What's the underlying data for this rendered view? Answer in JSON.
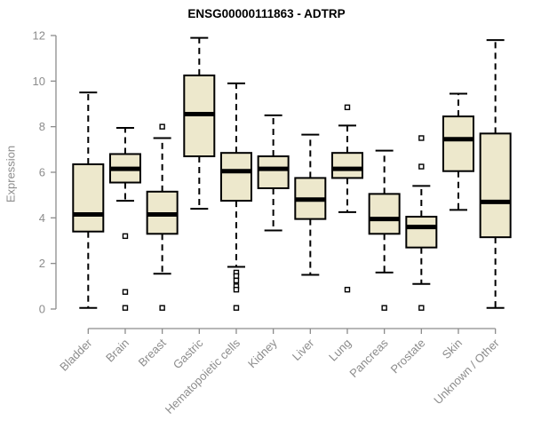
{
  "title": "ENSG00000111863 - ADTRP",
  "chart_data": {
    "type": "boxplot",
    "title": "ENSG00000111863 - ADTRP",
    "xlabel": "",
    "ylabel": "Expression",
    "ylim": [
      0,
      12
    ],
    "yticks": [
      0,
      2,
      4,
      6,
      8,
      10,
      12
    ],
    "grid": false,
    "legend": "none",
    "colors": {
      "box_fill": "#EDE8CC",
      "box_border": "#000000",
      "median": "#000000",
      "whisker": "#000000",
      "axis": "#8C8C8C",
      "tick_label": "#8C8C8C",
      "title": "#000000"
    },
    "categories": [
      "Bladder",
      "Brain",
      "Breast",
      "Gastric",
      "Hematopoietic cells",
      "Kidney",
      "Liver",
      "Lung",
      "Pancreas",
      "Prostate",
      "Skin",
      "Unknown / Other"
    ],
    "series": [
      {
        "name": "Bladder",
        "whisker_low": 0.05,
        "q1": 3.4,
        "median": 4.15,
        "q3": 6.35,
        "whisker_high": 9.5,
        "outliers": []
      },
      {
        "name": "Brain",
        "whisker_low": 4.75,
        "q1": 5.55,
        "median": 6.15,
        "q3": 6.8,
        "whisker_high": 7.95,
        "outliers": [
          3.2,
          0.75,
          0.05
        ]
      },
      {
        "name": "Breast",
        "whisker_low": 1.55,
        "q1": 3.3,
        "median": 4.15,
        "q3": 5.15,
        "whisker_high": 7.5,
        "outliers": [
          8.0,
          0.05
        ]
      },
      {
        "name": "Gastric",
        "whisker_low": 4.4,
        "q1": 6.7,
        "median": 8.55,
        "q3": 10.25,
        "whisker_high": 11.9,
        "outliers": []
      },
      {
        "name": "Hematopoietic cells",
        "whisker_low": 1.85,
        "q1": 4.75,
        "median": 6.05,
        "q3": 6.85,
        "whisker_high": 9.9,
        "outliers": [
          1.6,
          1.45,
          1.25,
          1.0,
          0.85,
          0.05
        ]
      },
      {
        "name": "Kidney",
        "whisker_low": 3.45,
        "q1": 5.3,
        "median": 6.15,
        "q3": 6.7,
        "whisker_high": 8.5,
        "outliers": []
      },
      {
        "name": "Liver",
        "whisker_low": 1.5,
        "q1": 3.95,
        "median": 4.8,
        "q3": 5.75,
        "whisker_high": 7.65,
        "outliers": []
      },
      {
        "name": "Lung",
        "whisker_low": 4.25,
        "q1": 5.75,
        "median": 6.15,
        "q3": 6.85,
        "whisker_high": 8.05,
        "outliers": [
          8.85,
          0.85
        ]
      },
      {
        "name": "Pancreas",
        "whisker_low": 1.6,
        "q1": 3.3,
        "median": 3.95,
        "q3": 5.05,
        "whisker_high": 6.95,
        "outliers": [
          0.05
        ]
      },
      {
        "name": "Prostate",
        "whisker_low": 1.1,
        "q1": 2.7,
        "median": 3.6,
        "q3": 4.05,
        "whisker_high": 5.4,
        "outliers": [
          7.5,
          6.25,
          0.05
        ]
      },
      {
        "name": "Skin",
        "whisker_low": 4.35,
        "q1": 6.05,
        "median": 7.45,
        "q3": 8.45,
        "whisker_high": 9.45,
        "outliers": []
      },
      {
        "name": "Unknown / Other",
        "whisker_low": 0.05,
        "q1": 3.15,
        "median": 4.7,
        "q3": 7.7,
        "whisker_high": 11.8,
        "outliers": []
      }
    ]
  }
}
